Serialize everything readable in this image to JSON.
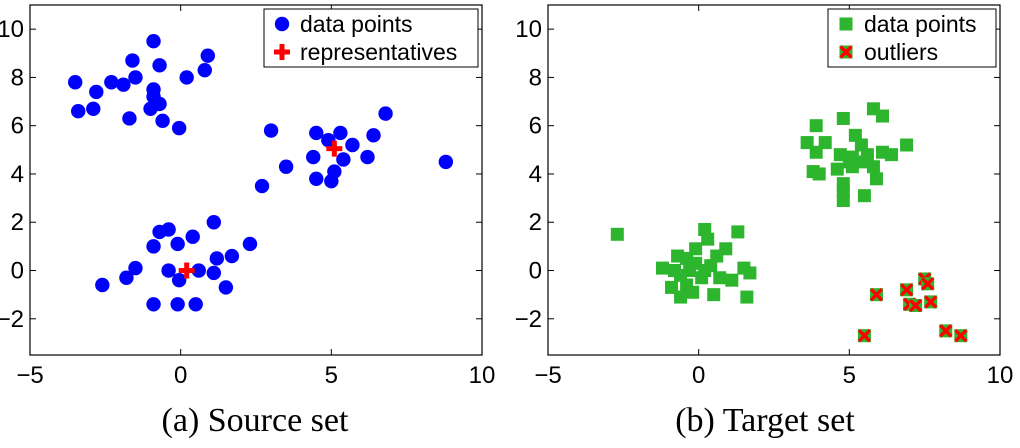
{
  "chart_data": [
    {
      "type": "scatter",
      "title": "",
      "caption": "(a) Source set",
      "xlabel": "",
      "ylabel": "",
      "xlim": [
        -5,
        10
      ],
      "ylim": [
        -3.5,
        11
      ],
      "xticks": [
        -5,
        0,
        5,
        10
      ],
      "yticks": [
        -2,
        0,
        2,
        4,
        6,
        8,
        10
      ],
      "grid": false,
      "legend_position": "top-right",
      "series": [
        {
          "name": "data points",
          "marker": "circle",
          "color": "#0000ff",
          "points": [
            [
              -0.9,
              9.5
            ],
            [
              -1.6,
              8.7
            ],
            [
              0.9,
              8.9
            ],
            [
              -0.7,
              8.5
            ],
            [
              -1.5,
              8.0
            ],
            [
              -2.3,
              7.8
            ],
            [
              -3.5,
              7.8
            ],
            [
              -1.9,
              7.7
            ],
            [
              0.2,
              8.0
            ],
            [
              0.8,
              8.3
            ],
            [
              -2.8,
              7.4
            ],
            [
              -0.9,
              7.5
            ],
            [
              -0.9,
              7.2
            ],
            [
              -0.7,
              6.9
            ],
            [
              -1.0,
              6.7
            ],
            [
              -3.4,
              6.6
            ],
            [
              -2.9,
              6.7
            ],
            [
              -1.7,
              6.3
            ],
            [
              -0.6,
              6.2
            ],
            [
              -0.05,
              5.9
            ],
            [
              3.0,
              5.8
            ],
            [
              4.5,
              5.7
            ],
            [
              5.3,
              5.7
            ],
            [
              4.9,
              5.4
            ],
            [
              5.7,
              5.2
            ],
            [
              6.4,
              5.6
            ],
            [
              6.8,
              6.5
            ],
            [
              4.4,
              4.7
            ],
            [
              5.4,
              4.6
            ],
            [
              6.2,
              4.7
            ],
            [
              3.5,
              4.3
            ],
            [
              5.1,
              4.1
            ],
            [
              4.5,
              3.8
            ],
            [
              5.0,
              3.7
            ],
            [
              2.7,
              3.5
            ],
            [
              8.8,
              4.5
            ],
            [
              1.1,
              2.0
            ],
            [
              -0.4,
              1.7
            ],
            [
              -0.7,
              1.6
            ],
            [
              0.4,
              1.4
            ],
            [
              -0.1,
              1.1
            ],
            [
              2.3,
              1.1
            ],
            [
              -0.9,
              1.0
            ],
            [
              1.7,
              0.6
            ],
            [
              1.2,
              0.5
            ],
            [
              -1.5,
              0.1
            ],
            [
              0.6,
              0.0
            ],
            [
              -0.4,
              0.0
            ],
            [
              1.1,
              -0.1
            ],
            [
              -1.8,
              -0.3
            ],
            [
              -0.05,
              -0.4
            ],
            [
              -2.6,
              -0.6
            ],
            [
              1.5,
              -0.7
            ],
            [
              -0.9,
              -1.4
            ],
            [
              -0.1,
              -1.4
            ],
            [
              0.5,
              -1.4
            ]
          ]
        },
        {
          "name": "representatives",
          "marker": "plus",
          "color": "#ff0000",
          "points": [
            [
              5.1,
              5.05
            ],
            [
              0.2,
              0.0
            ]
          ]
        }
      ]
    },
    {
      "type": "scatter",
      "title": "",
      "caption": "(b) Target set",
      "xlabel": "",
      "ylabel": "",
      "xlim": [
        -5,
        10
      ],
      "ylim": [
        -3.5,
        11
      ],
      "xticks": [
        -5,
        0,
        5,
        10
      ],
      "yticks": [
        -2,
        0,
        2,
        4,
        6,
        8,
        10
      ],
      "grid": false,
      "legend_position": "top-right",
      "series": [
        {
          "name": "data points",
          "marker": "square",
          "color": "#2db52d",
          "points": [
            [
              5.8,
              6.7
            ],
            [
              6.1,
              6.4
            ],
            [
              4.8,
              6.3
            ],
            [
              3.9,
              6.0
            ],
            [
              5.2,
              5.6
            ],
            [
              3.6,
              5.3
            ],
            [
              4.2,
              5.3
            ],
            [
              5.4,
              5.2
            ],
            [
              6.9,
              5.2
            ],
            [
              3.9,
              4.9
            ],
            [
              4.7,
              4.8
            ],
            [
              5.1,
              4.7
            ],
            [
              5.6,
              4.8
            ],
            [
              6.1,
              4.9
            ],
            [
              6.4,
              4.8
            ],
            [
              5.0,
              4.5
            ],
            [
              5.5,
              4.5
            ],
            [
              5.8,
              4.3
            ],
            [
              4.6,
              4.2
            ],
            [
              5.1,
              4.3
            ],
            [
              3.8,
              4.1
            ],
            [
              4.0,
              4.0
            ],
            [
              5.9,
              3.8
            ],
            [
              4.8,
              3.6
            ],
            [
              4.8,
              3.3
            ],
            [
              5.5,
              3.1
            ],
            [
              4.8,
              2.9
            ],
            [
              -2.7,
              1.5
            ],
            [
              0.2,
              1.7
            ],
            [
              1.3,
              1.6
            ],
            [
              0.3,
              1.3
            ],
            [
              -0.1,
              0.9
            ],
            [
              0.9,
              0.9
            ],
            [
              0.6,
              0.6
            ],
            [
              -0.7,
              0.6
            ],
            [
              -0.4,
              0.5
            ],
            [
              -0.1,
              0.3
            ],
            [
              0.4,
              0.2
            ],
            [
              -1.2,
              0.1
            ],
            [
              -0.8,
              0.0
            ],
            [
              -0.3,
              0.0
            ],
            [
              0.2,
              0.0
            ],
            [
              1.5,
              0.1
            ],
            [
              1.7,
              -0.1
            ],
            [
              -0.6,
              -0.2
            ],
            [
              0.1,
              -0.3
            ],
            [
              0.7,
              -0.3
            ],
            [
              1.1,
              -0.4
            ],
            [
              -0.4,
              -0.6
            ],
            [
              -0.9,
              -0.7
            ],
            [
              -0.2,
              -0.9
            ],
            [
              0.5,
              -1.0
            ],
            [
              1.6,
              -1.1
            ],
            [
              -0.6,
              -1.1
            ]
          ]
        },
        {
          "name": "outliers",
          "marker": "square-x",
          "color": "#ff0000",
          "points": [
            [
              7.5,
              -0.35
            ],
            [
              7.6,
              -0.55
            ],
            [
              5.9,
              -1.0
            ],
            [
              6.9,
              -0.8
            ],
            [
              7.7,
              -1.3
            ],
            [
              7.0,
              -1.4
            ],
            [
              7.2,
              -1.45
            ],
            [
              5.5,
              -2.7
            ],
            [
              8.2,
              -2.5
            ],
            [
              8.7,
              -2.7
            ]
          ]
        }
      ]
    }
  ]
}
